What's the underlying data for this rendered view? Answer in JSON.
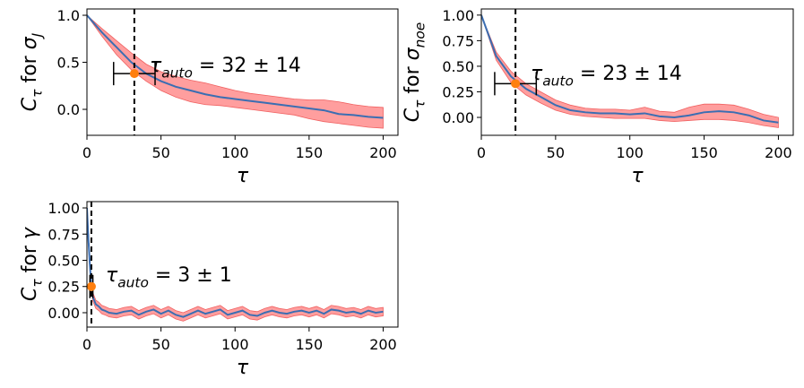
{
  "chart_data": [
    {
      "type": "band-line",
      "xlabel": [
        {
          "text": "τ",
          "italic": true
        }
      ],
      "ylabel": [
        {
          "text": "C",
          "italic": true
        },
        {
          "text": "τ",
          "italic": true,
          "sub": true
        },
        {
          "text": " for "
        },
        {
          "text": "σ",
          "italic": true
        },
        {
          "text": "J",
          "italic": true,
          "sub": true
        }
      ],
      "annotation": [
        {
          "text": "τ",
          "italic": true
        },
        {
          "text": "auto",
          "italic": true,
          "sub": true
        },
        {
          "text": " = 32 ± 14"
        }
      ],
      "tau": 32,
      "tau_err": 14,
      "tau_point": 0.38,
      "x": [
        0,
        10,
        20,
        30,
        40,
        50,
        60,
        70,
        80,
        90,
        100,
        110,
        120,
        130,
        140,
        150,
        160,
        170,
        180,
        190,
        200
      ],
      "values": [
        1.0,
        0.82,
        0.66,
        0.5,
        0.38,
        0.3,
        0.24,
        0.2,
        0.16,
        0.13,
        0.11,
        0.09,
        0.07,
        0.05,
        0.03,
        0.01,
        -0.01,
        -0.05,
        -0.06,
        -0.08,
        -0.09
      ],
      "lower": [
        1.0,
        0.78,
        0.58,
        0.42,
        0.3,
        0.2,
        0.13,
        0.08,
        0.05,
        0.04,
        0.02,
        0,
        -0.02,
        -0.04,
        -0.06,
        -0.1,
        -0.13,
        -0.15,
        -0.17,
        -0.19,
        -0.2
      ],
      "upper": [
        1.0,
        0.86,
        0.73,
        0.6,
        0.48,
        0.4,
        0.35,
        0.31,
        0.28,
        0.24,
        0.2,
        0.17,
        0.15,
        0.13,
        0.11,
        0.1,
        0.1,
        0.08,
        0.05,
        0.03,
        0.02
      ],
      "color": "#3b6eb2",
      "band_color": "#ff9494",
      "point_color": "#ff7f0e",
      "xlim": [
        0,
        210
      ],
      "ylim": [
        -0.276,
        1.067
      ],
      "xticks": [
        0,
        50,
        100,
        150,
        200
      ],
      "yticks": [
        {
          "value": 0,
          "label": "0.0"
        },
        {
          "value": 0.5,
          "label": "0.5"
        },
        {
          "value": 1,
          "label": "1.0"
        }
      ]
    },
    {
      "type": "band-line",
      "xlabel": [
        {
          "text": "τ",
          "italic": true
        }
      ],
      "ylabel": [
        {
          "text": "C",
          "italic": true
        },
        {
          "text": "τ",
          "italic": true,
          "sub": true
        },
        {
          "text": " for "
        },
        {
          "text": "σ",
          "italic": true
        },
        {
          "text": "noe",
          "italic": true,
          "sub": true
        }
      ],
      "annotation": [
        {
          "text": "τ",
          "italic": true
        },
        {
          "text": "auto",
          "italic": true,
          "sub": true
        },
        {
          "text": " = 23 ± 14"
        }
      ],
      "tau": 23,
      "tau_err": 14,
      "tau_point": 0.33,
      "x": [
        0,
        10,
        20,
        30,
        40,
        50,
        60,
        70,
        80,
        90,
        100,
        110,
        120,
        130,
        140,
        150,
        160,
        170,
        180,
        190,
        200
      ],
      "values": [
        1.0,
        0.6,
        0.4,
        0.28,
        0.2,
        0.12,
        0.07,
        0.05,
        0.04,
        0.04,
        0.03,
        0.04,
        0.01,
        0.0,
        0.02,
        0.05,
        0.06,
        0.05,
        0.02,
        -0.03,
        -0.05
      ],
      "lower": [
        1.0,
        0.56,
        0.34,
        0.22,
        0.14,
        0.07,
        0.03,
        0.01,
        0.0,
        -0.01,
        -0.01,
        -0.01,
        -0.03,
        -0.04,
        -0.03,
        -0.02,
        -0.02,
        -0.03,
        -0.05,
        -0.08,
        -0.1
      ],
      "upper": [
        1.0,
        0.64,
        0.45,
        0.33,
        0.25,
        0.17,
        0.12,
        0.09,
        0.08,
        0.08,
        0.07,
        0.1,
        0.06,
        0.05,
        0.1,
        0.13,
        0.13,
        0.12,
        0.08,
        0.03,
        0.0
      ],
      "color": "#3b6eb2",
      "band_color": "#ff9494",
      "point_color": "#ff7f0e",
      "xlim": [
        0,
        210
      ],
      "ylim": [
        -0.175,
        1.06
      ],
      "xticks": [
        0,
        50,
        100,
        150,
        200
      ],
      "yticks": [
        {
          "value": 0,
          "label": "0.00"
        },
        {
          "value": 0.25,
          "label": "0.25"
        },
        {
          "value": 0.5,
          "label": "0.50"
        },
        {
          "value": 0.75,
          "label": "0.75"
        },
        {
          "value": 1,
          "label": "1.00"
        }
      ]
    },
    {
      "type": "band-line",
      "xlabel": [
        {
          "text": "τ",
          "italic": true
        }
      ],
      "ylabel": [
        {
          "text": "C",
          "italic": true
        },
        {
          "text": "τ",
          "italic": true,
          "sub": true
        },
        {
          "text": " for "
        },
        {
          "text": "γ",
          "italic": true
        }
      ],
      "annotation": [
        {
          "text": "τ",
          "italic": true
        },
        {
          "text": "auto",
          "italic": true,
          "sub": true
        },
        {
          "text": " = 3 ± 1"
        }
      ],
      "tau": 3,
      "tau_err": 1,
      "tau_point": 0.25,
      "x": [
        0,
        1,
        2,
        3,
        4,
        6,
        8,
        10,
        12,
        15,
        20,
        25,
        30,
        35,
        40,
        45,
        50,
        55,
        60,
        65,
        70,
        75,
        80,
        85,
        90,
        95,
        100,
        105,
        110,
        115,
        120,
        125,
        130,
        135,
        140,
        145,
        150,
        155,
        160,
        165,
        170,
        175,
        180,
        185,
        190,
        195,
        200
      ],
      "values": [
        1.0,
        0.7,
        0.45,
        0.25,
        0.15,
        0.08,
        0.06,
        0.03,
        0.02,
        0.0,
        -0.01,
        0.01,
        0.02,
        -0.02,
        0.01,
        0.03,
        -0.01,
        0.02,
        -0.02,
        -0.04,
        -0.01,
        0.02,
        -0.01,
        0.01,
        0.03,
        -0.02,
        0.0,
        0.02,
        -0.02,
        -0.03,
        0.0,
        0.02,
        0.0,
        -0.01,
        0.01,
        0.02,
        0.0,
        0.02,
        -0.01,
        0.03,
        0.02,
        0.0,
        0.01,
        -0.01,
        0.02,
        0.0,
        0.01
      ],
      "lower": [
        1.0,
        0.66,
        0.41,
        0.21,
        0.11,
        0.04,
        0.02,
        -0.01,
        -0.02,
        -0.04,
        -0.05,
        -0.03,
        -0.02,
        -0.06,
        -0.03,
        -0.01,
        -0.05,
        -0.02,
        -0.06,
        -0.08,
        -0.05,
        -0.02,
        -0.05,
        -0.03,
        -0.01,
        -0.06,
        -0.04,
        -0.02,
        -0.06,
        -0.07,
        -0.04,
        -0.02,
        -0.04,
        -0.05,
        -0.03,
        -0.02,
        -0.04,
        -0.02,
        -0.05,
        -0.01,
        -0.02,
        -0.04,
        -0.03,
        -0.05,
        -0.02,
        -0.04,
        -0.03
      ],
      "upper": [
        1.0,
        0.74,
        0.49,
        0.29,
        0.19,
        0.12,
        0.1,
        0.07,
        0.06,
        0.04,
        0.03,
        0.05,
        0.06,
        0.02,
        0.05,
        0.07,
        0.03,
        0.06,
        0.02,
        0.0,
        0.03,
        0.06,
        0.03,
        0.05,
        0.07,
        0.02,
        0.04,
        0.06,
        0.02,
        0.01,
        0.04,
        0.06,
        0.04,
        0.03,
        0.05,
        0.06,
        0.04,
        0.06,
        0.03,
        0.07,
        0.06,
        0.04,
        0.05,
        0.03,
        0.06,
        0.04,
        0.05
      ],
      "color": "#3b6eb2",
      "band_color": "#ff9494",
      "point_color": "#ff7f0e",
      "xlim": [
        0,
        210
      ],
      "ylim": [
        -0.137,
        1.06
      ],
      "xticks": [
        0,
        50,
        100,
        150,
        200
      ],
      "yticks": [
        {
          "value": 0,
          "label": "0.00"
        },
        {
          "value": 0.25,
          "label": "0.25"
        },
        {
          "value": 0.5,
          "label": "0.50"
        },
        {
          "value": 0.75,
          "label": "0.75"
        },
        {
          "value": 1,
          "label": "1.00"
        }
      ]
    }
  ]
}
